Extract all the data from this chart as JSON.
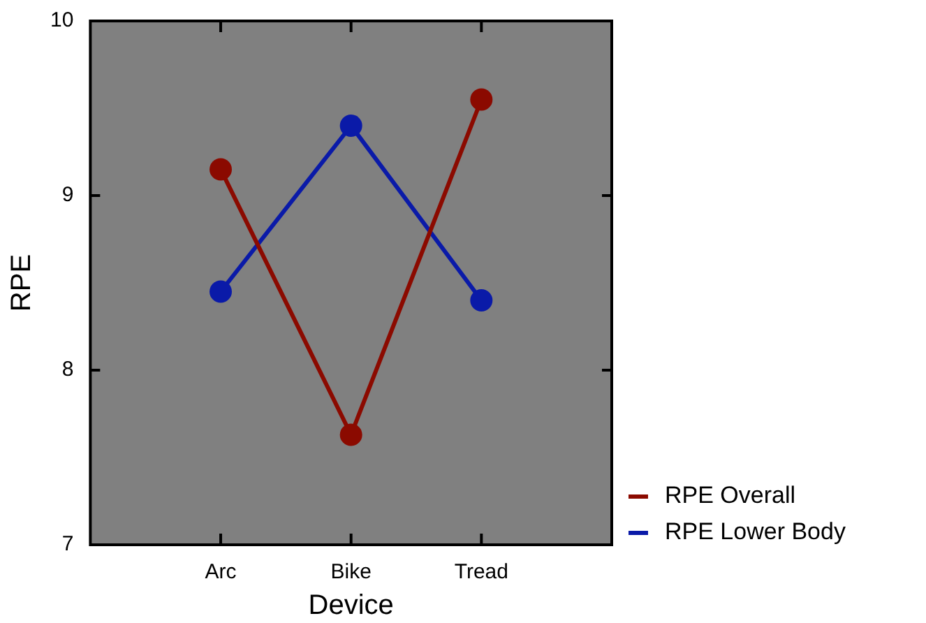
{
  "chart_data": {
    "type": "line",
    "xlabel": "Device",
    "ylabel": "RPE",
    "categories": [
      "Arc",
      "Bike",
      "Tread"
    ],
    "series": [
      {
        "name": "RPE Overall",
        "color": "#8b0a00",
        "values": [
          9.15,
          7.63,
          9.55
        ]
      },
      {
        "name": "RPE Lower Body",
        "color": "#0a1aa8",
        "values": [
          8.45,
          9.4,
          8.4
        ]
      }
    ],
    "ylim": [
      7,
      10
    ],
    "yticks": [
      7,
      8,
      9,
      10
    ],
    "grid": false,
    "legend": "bottom right",
    "marker": "circle",
    "line_style": "solid"
  }
}
